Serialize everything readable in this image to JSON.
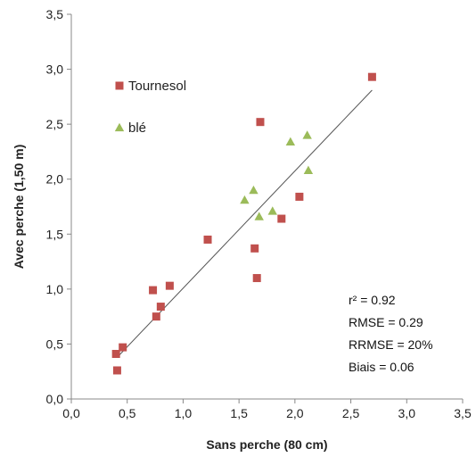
{
  "chart_data": {
    "type": "scatter",
    "xlabel": "Sans perche (80 cm)",
    "ylabel": "Avec perche (1,50 m)",
    "xlim": [
      0,
      3.5
    ],
    "ylim": [
      0,
      3.5
    ],
    "x_ticks": [
      "0,0",
      "0,5",
      "1,0",
      "1,5",
      "2,0",
      "2,5",
      "3,0",
      "3,5"
    ],
    "y_ticks": [
      "0,0",
      "0,5",
      "1,0",
      "1,5",
      "2,0",
      "2,5",
      "3,0",
      "3,5"
    ],
    "grid": false,
    "legend_position": "top-left",
    "series": [
      {
        "name": "Tournesol",
        "marker": "square",
        "color": "#c0504d",
        "points": [
          {
            "x": 0.4,
            "y": 0.41
          },
          {
            "x": 0.41,
            "y": 0.26
          },
          {
            "x": 0.46,
            "y": 0.47
          },
          {
            "x": 0.73,
            "y": 0.99
          },
          {
            "x": 0.76,
            "y": 0.75
          },
          {
            "x": 0.8,
            "y": 0.84
          },
          {
            "x": 0.88,
            "y": 1.03
          },
          {
            "x": 1.22,
            "y": 1.45
          },
          {
            "x": 1.64,
            "y": 1.37
          },
          {
            "x": 1.66,
            "y": 1.1
          },
          {
            "x": 1.69,
            "y": 2.52
          },
          {
            "x": 1.88,
            "y": 1.64
          },
          {
            "x": 2.04,
            "y": 1.84
          },
          {
            "x": 2.69,
            "y": 2.93
          }
        ]
      },
      {
        "name": "blé",
        "marker": "triangle",
        "color": "#9bbb59",
        "points": [
          {
            "x": 1.55,
            "y": 1.81
          },
          {
            "x": 1.63,
            "y": 1.9
          },
          {
            "x": 1.68,
            "y": 1.66
          },
          {
            "x": 1.8,
            "y": 1.71
          },
          {
            "x": 1.96,
            "y": 2.34
          },
          {
            "x": 2.11,
            "y": 2.4
          },
          {
            "x": 2.12,
            "y": 2.08
          }
        ]
      }
    ],
    "regression_line": {
      "color": "#555555",
      "x": [
        0.43,
        2.69
      ],
      "y": [
        0.4,
        2.81
      ]
    },
    "annotations": [
      "r² = 0.92",
      "RMSE = 0.29",
      "RRMSE = 20%",
      "Biais = 0.06"
    ]
  }
}
